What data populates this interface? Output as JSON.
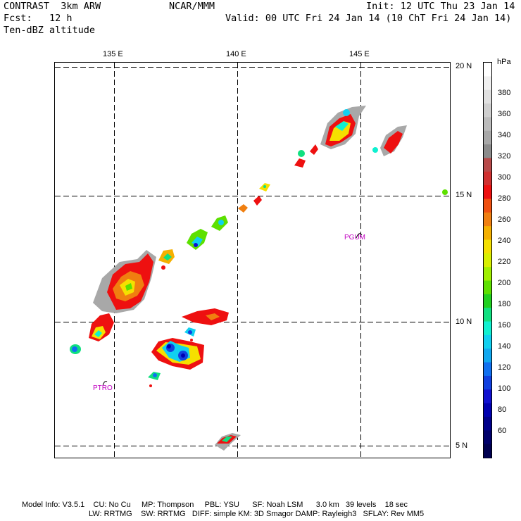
{
  "header": {
    "line1_left": "CONTRAST  3km ARW",
    "line1_center": "NCAR/MMM",
    "line1_right": "Init: 12 UTC Thu 23 Jan 14",
    "line2_left": "Fcst:   12 h",
    "line2_right": "Valid: 00 UTC Fri 24 Jan 14 (10 ChT Fri 24 Jan 14)",
    "line3_left": "Ten-dBZ altitude"
  },
  "map": {
    "lon_labels": [
      "135 E",
      "140 E",
      "145 E"
    ],
    "lat_labels": [
      "20 N",
      "15 N",
      "10 N",
      "5 N"
    ],
    "stations": [
      {
        "name": "PGUM"
      },
      {
        "name": "PTRO"
      }
    ]
  },
  "colorbar": {
    "unit": "hPa",
    "tick_labels": [
      "380",
      "360",
      "340",
      "320",
      "300",
      "280",
      "260",
      "240",
      "220",
      "200",
      "180",
      "160",
      "140",
      "120",
      "100",
      "80",
      "60"
    ],
    "colors": [
      "#ffffff",
      "#f0f0f0",
      "#e0e0e0",
      "#cfcfcf",
      "#bcbcbc",
      "#a8a8a8",
      "#8c8c8c",
      "#b84a4a",
      "#d03030",
      "#ee1010",
      "#f05010",
      "#f07f10",
      "#f5b000",
      "#f5e000",
      "#d8f000",
      "#a0f000",
      "#5de000",
      "#20d020",
      "#10e080",
      "#10f0d0",
      "#10d0f0",
      "#10a8f0",
      "#1070f0",
      "#1040e0",
      "#1010d0",
      "#0000b0",
      "#00008a",
      "#00006a",
      "#000050"
    ]
  },
  "footer": {
    "line1": "Model Info: V3.5.1    CU: No Cu     MP: Thompson     PBL: YSU      SF: Noah LSM      3.0 km   39 levels    18 sec",
    "line2": "LW: RRTMG    SW: RRTMG   DIFF: simple KM: 3D Smagor DAMP: Rayleigh3   SFLAY: Rev MM5"
  }
}
